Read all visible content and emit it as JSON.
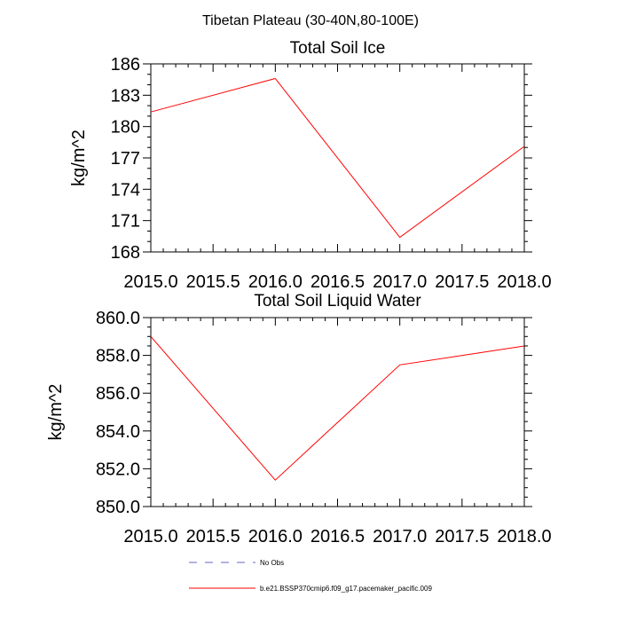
{
  "figure": {
    "title": "Tibetan Plateau (30-40N,80-100E)"
  },
  "chart_data": [
    {
      "type": "line",
      "title": "Total Soil Ice",
      "xlabel": "",
      "ylabel": "kg/m^2",
      "xlim": [
        2015.0,
        2018.0
      ],
      "ylim": [
        168,
        186
      ],
      "xticks": [
        2015.0,
        2015.5,
        2016.0,
        2016.5,
        2017.0,
        2017.5,
        2018.0
      ],
      "xtick_labels": [
        "2015.0",
        "2015.5",
        "2016.0",
        "2016.5",
        "2017.0",
        "2017.5",
        "2018.0"
      ],
      "yticks": [
        168,
        171,
        174,
        177,
        180,
        183,
        186
      ],
      "ytick_labels": [
        "168",
        "171",
        "174",
        "177",
        "180",
        "183",
        "186"
      ],
      "grid": false,
      "series": [
        {
          "name": "b.e21.BSSP370cmip6.f09_g17.pacemaker_pacific.009",
          "color": "#ff0000",
          "x": [
            2015.0,
            2016.0,
            2017.0,
            2018.0
          ],
          "y": [
            181.4,
            184.6,
            169.4,
            178.1
          ]
        }
      ]
    },
    {
      "type": "line",
      "title": "Total Soil Liquid Water",
      "xlabel": "",
      "ylabel": "kg/m^2",
      "xlim": [
        2015.0,
        2018.0
      ],
      "ylim": [
        850.0,
        860.0
      ],
      "xticks": [
        2015.0,
        2015.5,
        2016.0,
        2016.5,
        2017.0,
        2017.5,
        2018.0
      ],
      "xtick_labels": [
        "2015.0",
        "2015.5",
        "2016.0",
        "2016.5",
        "2017.0",
        "2017.5",
        "2018.0"
      ],
      "yticks": [
        850.0,
        852.0,
        854.0,
        856.0,
        858.0,
        860.0
      ],
      "ytick_labels": [
        "850.0",
        "852.0",
        "854.0",
        "856.0",
        "858.0",
        "860.0"
      ],
      "grid": false,
      "series": [
        {
          "name": "b.e21.BSSP370cmip6.f09_g17.pacemaker_pacific.009",
          "color": "#ff0000",
          "x": [
            2015.0,
            2016.0,
            2017.0,
            2018.0
          ],
          "y": [
            859.0,
            851.4,
            857.5,
            858.5
          ]
        }
      ]
    }
  ],
  "legend": {
    "placement": "bottom-center",
    "entries": [
      {
        "label": "No Obs",
        "color": "#6666cc",
        "style": "dashed"
      },
      {
        "label": "b.e21.BSSP370cmip6.f09_g17.pacemaker_pacific.009",
        "color": "#ff0000",
        "style": "solid"
      }
    ]
  }
}
